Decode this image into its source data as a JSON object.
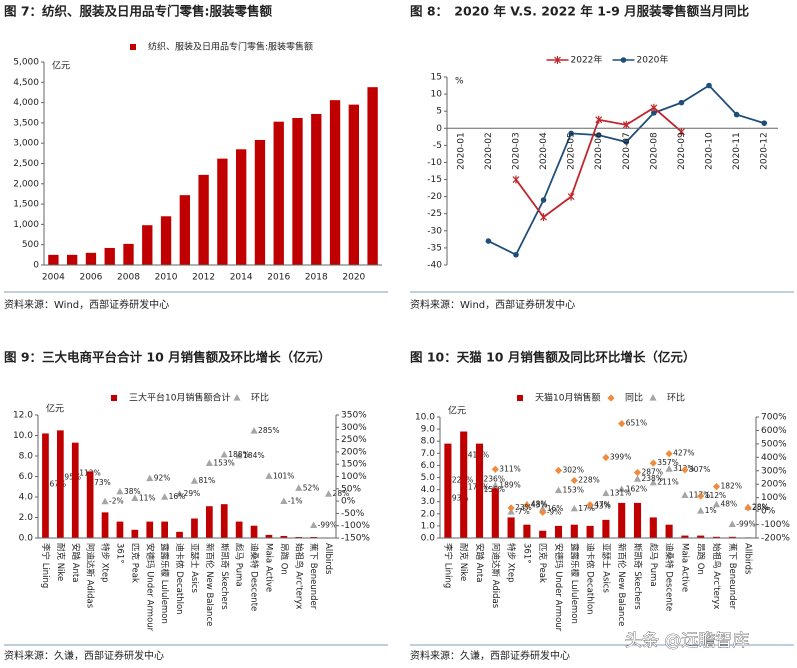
{
  "watermark": "头条 @远瞻智库",
  "chart_data": [
    {
      "type": "bar",
      "title": "图 7：纺织、服装及日用品专门零售:服装零售额",
      "y_label": "亿元",
      "source": "资料来源：Wind，西部证券研发中心",
      "legend": "top",
      "categories": [
        "2004",
        null,
        "2006",
        null,
        "2008",
        null,
        "2010",
        null,
        "2012",
        null,
        "2014",
        null,
        "2016",
        null,
        "2018",
        null,
        "2020",
        null
      ],
      "series": [
        {
          "name": "纺织、服装及日用品专门零售:服装零售额",
          "color": "#c00000",
          "values": [
            250,
            250,
            300,
            420,
            520,
            980,
            1200,
            1720,
            2220,
            2620,
            2850,
            3080,
            3530,
            3620,
            3720,
            4060,
            3950,
            4380
          ]
        }
      ],
      "ylim": [
        0,
        5000
      ],
      "yticks": [
        0,
        500,
        {
          "value": 1000,
          "label": "1,000"
        },
        {
          "value": 1500,
          "label": "1,500"
        },
        {
          "value": 2000,
          "label": "2,000"
        },
        {
          "value": 2500,
          "label": "2,500"
        },
        {
          "value": 3000,
          "label": "3,000"
        },
        {
          "value": 3500,
          "label": "3,500"
        },
        {
          "value": 4000,
          "label": "4,000"
        },
        {
          "value": 4500,
          "label": "4,500"
        },
        {
          "value": 5000,
          "label": "5,000"
        }
      ]
    },
    {
      "type": "line",
      "title": "图 8：　2020 年 V.S. 2022 年 1-9 月服装零售额当月同比",
      "y_label": "%",
      "source": "资料来源：Wind，西部证券研发中心",
      "legend": "top",
      "categories": [
        "2020-01",
        "2020-02",
        "2020-03",
        "2020-04",
        "2020-05",
        "2020-06",
        "2020-07",
        "2020-08",
        "2020-09",
        "2020-10",
        "2020-11",
        "2020-12"
      ],
      "series": [
        {
          "name": "2022年",
          "color": "#c0262d",
          "marker": "asterisk",
          "values": [
            null,
            null,
            -15,
            -26,
            -20,
            2.5,
            1,
            6,
            -1,
            null,
            null,
            null
          ]
        },
        {
          "name": "2020年",
          "color": "#1f4e79",
          "marker": "circle",
          "values": [
            null,
            -33,
            -37,
            -21,
            -1.5,
            -2,
            -4,
            4.5,
            7.5,
            12.5,
            4,
            1.5
          ]
        }
      ],
      "ylim": [
        -40,
        15
      ],
      "yticks": [
        -40,
        -35,
        -30,
        -25,
        -20,
        -15,
        -10,
        -5,
        0,
        5,
        10,
        15
      ]
    },
    {
      "type": "combo",
      "title": "图 9：三大电商平台合计 10 月销售额及环比增长（亿元）",
      "y_label": "亿元",
      "source": "资料来源：久谦，西部证券研发中心",
      "legend": "top",
      "categories": [
        "李宁 Lining",
        "耐克 Nike",
        "安踏 Anta",
        "阿迪达斯 Adidas",
        "特步 Xtep",
        "361°",
        "匹克 Peak",
        "安德玛 Under Armour",
        "露露乐檬 Lululemon",
        "迪卡侬 Decathlon",
        "亚瑟士 Asics",
        "新百伦 New Balance",
        "斯凯奇 Skechers",
        "彪马 Puma",
        "迪桑特 Descente",
        "Maia Active",
        "昂跑 On",
        "始祖鸟 Arc'teryx",
        "蕉下 Beneunder",
        "Allbirds"
      ],
      "series": [
        {
          "name": "三大平台10月销售额合计",
          "color": "#c00000",
          "values": [
            10.2,
            10.5,
            9.3,
            6.5,
            2.5,
            1.6,
            0.8,
            1.6,
            1.6,
            0.6,
            1.9,
            3.1,
            3.3,
            1.6,
            1.2,
            0.3,
            0.2,
            0.1,
            0.1,
            0.05
          ]
        },
        {
          "name": "环比",
          "color": "#a6a6a6",
          "marker": "triangle",
          "axis": "y2",
          "values": [
            67,
            95,
            112,
            73,
            -2,
            38,
            11,
            92,
            16,
            29,
            81,
            153,
            188,
            184,
            285,
            101,
            -1,
            52,
            -99,
            28
          ],
          "value_labels": [
            "67%",
            "95%",
            "112%",
            "73%",
            "-2%",
            "38%",
            "11%",
            "92%",
            "16%",
            "29%",
            "81%",
            "153%",
            "188%",
            "184%",
            "285%",
            "101%",
            "-1%",
            "52%",
            "-99%",
            "28%"
          ]
        }
      ],
      "ylim": [
        0,
        12
      ],
      "yticks": [
        {
          "value": 0,
          "label": "0.0"
        },
        {
          "value": 2,
          "label": "2.0"
        },
        {
          "value": 4,
          "label": "4.0"
        },
        {
          "value": 6,
          "label": "6.0"
        },
        {
          "value": 8,
          "label": "8.0"
        },
        {
          "value": 10,
          "label": "10.0"
        },
        {
          "value": 12,
          "label": "12.0"
        }
      ],
      "y2lim": [
        -150,
        350
      ],
      "y2ticks": [
        {
          "value": -150,
          "label": "-150%"
        },
        {
          "value": -100,
          "label": "-100%"
        },
        {
          "value": -50,
          "label": "-50%"
        },
        {
          "value": 0,
          "label": "0%"
        },
        {
          "value": 50,
          "label": "50%"
        },
        {
          "value": 100,
          "label": "100%"
        },
        {
          "value": 150,
          "label": "150%"
        },
        {
          "value": 200,
          "label": "200%"
        },
        {
          "value": 250,
          "label": "250%"
        },
        {
          "value": 300,
          "label": "300%"
        },
        {
          "value": 350,
          "label": "350%"
        }
      ]
    },
    {
      "type": "combo",
      "title": "图 10：天猫 10 月销售额及同比环比增长（亿元）",
      "y_label": "亿元",
      "source": "资料来源：久谦，西部证券研发中心",
      "legend": "top",
      "categories": [
        "李宁 Lining",
        "耐克 Nike",
        "安踏 Anta",
        "阿迪达斯 Adidas",
        "特步 Xtep",
        "361°",
        "匹克 Peak",
        "安德玛 Under Armour",
        "露露乐檬 Lululemon",
        "迪卡侬 Decathlon",
        "亚瑟士 Asics",
        "新百伦 New Balance",
        "斯凯奇 Skechers",
        "彪马 Puma",
        "迪桑特 Descente",
        "Maia Active",
        "昂跑 On",
        "始祖鸟 Arc'teryx",
        "蕉下 Beneunder",
        "Allbirds"
      ],
      "series": [
        {
          "name": "天猫10月销售额",
          "color": "#c00000",
          "values": [
            7.8,
            8.8,
            7.8,
            4.1,
            1.7,
            1.1,
            0.6,
            1.0,
            1.1,
            1.0,
            1.5,
            2.9,
            2.9,
            1.7,
            1.1,
            0.2,
            0.2,
            0.1,
            0.1,
            0.05
          ]
        },
        {
          "name": "同比",
          "color": "#f08a3c",
          "marker": "diamond",
          "axis": "y2",
          "values": [
            226,
            412,
            236,
            311,
            23,
            43,
            -9,
            302,
            228,
            47,
            399,
            651,
            287,
            357,
            427,
            307,
            112,
            182,
            null,
            25
          ],
          "value_labels": [
            "226%",
            "412%",
            "236%",
            "311%",
            "23%",
            "43%",
            "-9%",
            "302%",
            "228%",
            "47%",
            "399%",
            "651%",
            "287%",
            "357%",
            "427%",
            "307%",
            "112%",
            "182%",
            null,
            "25%"
          ]
        },
        {
          "name": "环比",
          "color": "#a6a6a6",
          "marker": "triangle",
          "axis": "y2",
          "values": [
            93,
            177,
            156,
            189,
            -7,
            48,
            16,
            153,
            17,
            33,
            131,
            162,
            238,
            211,
            312,
            117,
            1,
            48,
            -99,
            28
          ],
          "value_labels": [
            "93%",
            "177%",
            "156%",
            "189%",
            "-7%",
            "48%",
            "16%",
            "153%",
            "17%",
            "33%",
            "131%",
            "162%",
            "238%",
            "211%",
            "312%",
            "117%",
            "1%",
            "48%",
            "-99%",
            "28%"
          ]
        }
      ],
      "ylim": [
        0,
        10
      ],
      "yticks": [
        {
          "value": 0,
          "label": "0.0"
        },
        {
          "value": 1,
          "label": "1.0"
        },
        {
          "value": 2,
          "label": "2.0"
        },
        {
          "value": 3,
          "label": "3.0"
        },
        {
          "value": 4,
          "label": "4.0"
        },
        {
          "value": 5,
          "label": "5.0"
        },
        {
          "value": 6,
          "label": "6.0"
        },
        {
          "value": 7,
          "label": "7.0"
        },
        {
          "value": 8,
          "label": "8.0"
        },
        {
          "value": 9,
          "label": "9.0"
        },
        {
          "value": 10,
          "label": "10.0"
        }
      ],
      "y2lim": [
        -200,
        700
      ],
      "y2ticks": [
        {
          "value": -200,
          "label": "-200%"
        },
        {
          "value": -100,
          "label": "-100%"
        },
        {
          "value": 0,
          "label": "0%"
        },
        {
          "value": 100,
          "label": "100%"
        },
        {
          "value": 200,
          "label": "200%"
        },
        {
          "value": 300,
          "label": "300%"
        },
        {
          "value": 400,
          "label": "400%"
        },
        {
          "value": 500,
          "label": "500%"
        },
        {
          "value": 600,
          "label": "600%"
        },
        {
          "value": 700,
          "label": "700%"
        }
      ]
    }
  ]
}
